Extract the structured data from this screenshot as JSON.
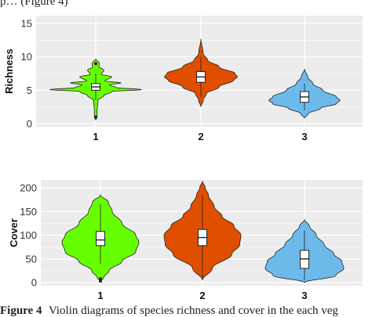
{
  "header_fragment": "p… (Figure 4)",
  "caption": {
    "label": "Figure 4",
    "text": "Violin diagrams of species richness and cover in the each veg"
  },
  "chart_data": [
    {
      "type": "violin",
      "ylabel": "Richness",
      "xlabel": "",
      "categories": [
        "1",
        "2",
        "3"
      ],
      "ylim": [
        0,
        15
      ],
      "yticks": [
        0,
        5,
        10,
        15
      ],
      "grid": true,
      "legend": "none",
      "series": [
        {
          "color": "#66ff00",
          "median": 5.5,
          "q1": 5,
          "q3": 6,
          "whisker_low": 3.5,
          "whisker_high": 7.5,
          "outliers": [
            1,
            9
          ],
          "profile": [
            [
              0.5,
              0
            ],
            [
              1,
              0.03
            ],
            [
              2,
              0.03
            ],
            [
              3.5,
              0.05
            ],
            [
              4.2,
              0.18
            ],
            [
              4.8,
              0.35
            ],
            [
              5.1,
              1.0
            ],
            [
              5.4,
              0.45
            ],
            [
              5.8,
              0.3
            ],
            [
              6.1,
              0.55
            ],
            [
              6.4,
              0.2
            ],
            [
              7,
              0.35
            ],
            [
              7.4,
              0.12
            ],
            [
              8,
              0.18
            ],
            [
              8.5,
              0.07
            ],
            [
              9,
              0.08
            ],
            [
              9.7,
              0
            ]
          ]
        },
        {
          "color": "#e04e00",
          "median": 7,
          "q1": 6.2,
          "q3": 7.8,
          "whisker_low": 4,
          "whisker_high": 10,
          "outliers": [],
          "profile": [
            [
              2.5,
              0
            ],
            [
              3.5,
              0.05
            ],
            [
              4.5,
              0.12
            ],
            [
              5.5,
              0.4
            ],
            [
              6.5,
              0.72
            ],
            [
              7,
              0.8
            ],
            [
              7.5,
              0.75
            ],
            [
              8.5,
              0.4
            ],
            [
              9.5,
              0.15
            ],
            [
              10.5,
              0.05
            ],
            [
              12.7,
              0
            ]
          ]
        },
        {
          "color": "#6cbaea",
          "median": 4,
          "q1": 3.2,
          "q3": 4.8,
          "whisker_low": 2,
          "whisker_high": 6,
          "outliers": [],
          "profile": [
            [
              0.8,
              0
            ],
            [
              1.5,
              0.08
            ],
            [
              2.3,
              0.35
            ],
            [
              3,
              0.7
            ],
            [
              3.5,
              0.78
            ],
            [
              4,
              0.7
            ],
            [
              5,
              0.4
            ],
            [
              6,
              0.18
            ],
            [
              7,
              0.07
            ],
            [
              8.2,
              0
            ]
          ]
        }
      ]
    },
    {
      "type": "violin",
      "ylabel": "Cover",
      "xlabel": "",
      "categories": [
        "1",
        "2",
        "3"
      ],
      "ylim": [
        0,
        200
      ],
      "yticks": [
        0,
        50,
        100,
        150,
        200
      ],
      "grid": true,
      "legend": "none",
      "series": [
        {
          "color": "#66ff00",
          "median": 90,
          "q1": 78,
          "q3": 108,
          "whisker_low": 40,
          "whisker_high": 165,
          "outliers": [
            3,
            8
          ],
          "profile": [
            [
              2,
              0
            ],
            [
              10,
              0.08
            ],
            [
              25,
              0.22
            ],
            [
              45,
              0.55
            ],
            [
              65,
              0.9
            ],
            [
              85,
              0.98
            ],
            [
              100,
              0.9
            ],
            [
              125,
              0.55
            ],
            [
              150,
              0.3
            ],
            [
              170,
              0.2
            ],
            [
              185,
              0
            ]
          ]
        },
        {
          "color": "#e04e00",
          "median": 95,
          "q1": 78,
          "q3": 112,
          "whisker_low": 10,
          "whisker_high": 185,
          "outliers": [],
          "profile": [
            [
              5,
              0
            ],
            [
              30,
              0.25
            ],
            [
              60,
              0.75
            ],
            [
              80,
              0.95
            ],
            [
              100,
              0.98
            ],
            [
              120,
              0.8
            ],
            [
              140,
              0.5
            ],
            [
              160,
              0.3
            ],
            [
              185,
              0.15
            ],
            [
              200,
              0.07
            ],
            [
              215,
              0
            ]
          ]
        },
        {
          "color": "#6cbaea",
          "median": 50,
          "q1": 30,
          "q3": 68,
          "whisker_low": 5,
          "whisker_high": 110,
          "outliers": [],
          "profile": [
            [
              0,
              0
            ],
            [
              15,
              0.8
            ],
            [
              30,
              1.0
            ],
            [
              45,
              0.95
            ],
            [
              60,
              0.75
            ],
            [
              80,
              0.5
            ],
            [
              100,
              0.3
            ],
            [
              120,
              0.12
            ],
            [
              133,
              0
            ]
          ]
        }
      ]
    }
  ]
}
